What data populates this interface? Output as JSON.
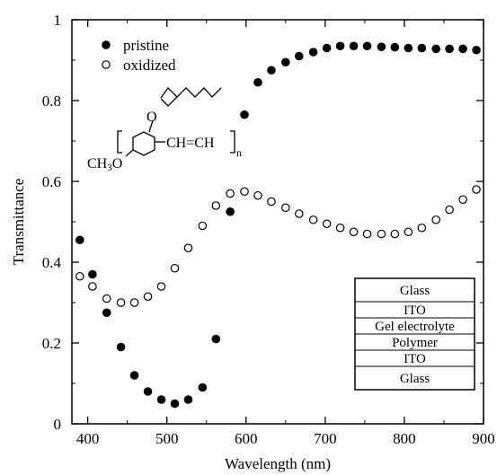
{
  "chart_data": {
    "type": "scatter",
    "xlabel": "Wavelength (nm)",
    "ylabel": "Transmittance",
    "xlim": [
      380,
      900
    ],
    "ylim": [
      0,
      1
    ],
    "xticks": [
      400,
      500,
      600,
      700,
      800,
      900
    ],
    "yticks": [
      "0",
      "0.2",
      "0.4",
      "0.6",
      "0.8",
      "1"
    ],
    "legend_position": "top-left",
    "series": [
      {
        "name": "pristine",
        "marker": "filled-circle",
        "color": "#000000",
        "x": [
          390,
          406,
          424,
          442,
          459,
          476,
          493,
          510,
          527,
          545,
          562,
          580,
          598,
          615,
          632,
          650,
          667,
          685,
          702,
          719,
          736,
          753,
          771,
          788,
          805,
          822,
          840,
          857,
          874,
          891
        ],
        "y": [
          0.455,
          0.37,
          0.275,
          0.19,
          0.12,
          0.08,
          0.06,
          0.05,
          0.06,
          0.09,
          0.21,
          0.525,
          0.765,
          0.845,
          0.875,
          0.895,
          0.91,
          0.92,
          0.93,
          0.935,
          0.935,
          0.935,
          0.933,
          0.932,
          0.93,
          0.93,
          0.928,
          0.928,
          0.928,
          0.925
        ]
      },
      {
        "name": "oxidized",
        "marker": "open-circle",
        "color": "#000000",
        "x": [
          390,
          406,
          424,
          442,
          459,
          476,
          493,
          510,
          527,
          545,
          562,
          580,
          598,
          615,
          632,
          650,
          667,
          685,
          702,
          719,
          736,
          753,
          771,
          788,
          805,
          822,
          840,
          857,
          874,
          891
        ],
        "y": [
          0.365,
          0.34,
          0.31,
          0.3,
          0.3,
          0.315,
          0.34,
          0.385,
          0.435,
          0.49,
          0.54,
          0.57,
          0.575,
          0.565,
          0.55,
          0.535,
          0.52,
          0.505,
          0.495,
          0.485,
          0.475,
          0.47,
          0.47,
          0.47,
          0.475,
          0.485,
          0.505,
          0.53,
          0.555,
          0.58
        ]
      }
    ],
    "annotations": {
      "structure": {
        "substituent": "O",
        "backbone": "CH=CH",
        "subscript": "n",
        "methoxy_prefix": "CH",
        "methoxy_sub": "3",
        "methoxy_suffix": "O"
      },
      "device_stack": [
        "Glass",
        "ITO",
        "Gel electrolyte",
        "Polymer",
        "ITO",
        "Glass"
      ]
    }
  }
}
